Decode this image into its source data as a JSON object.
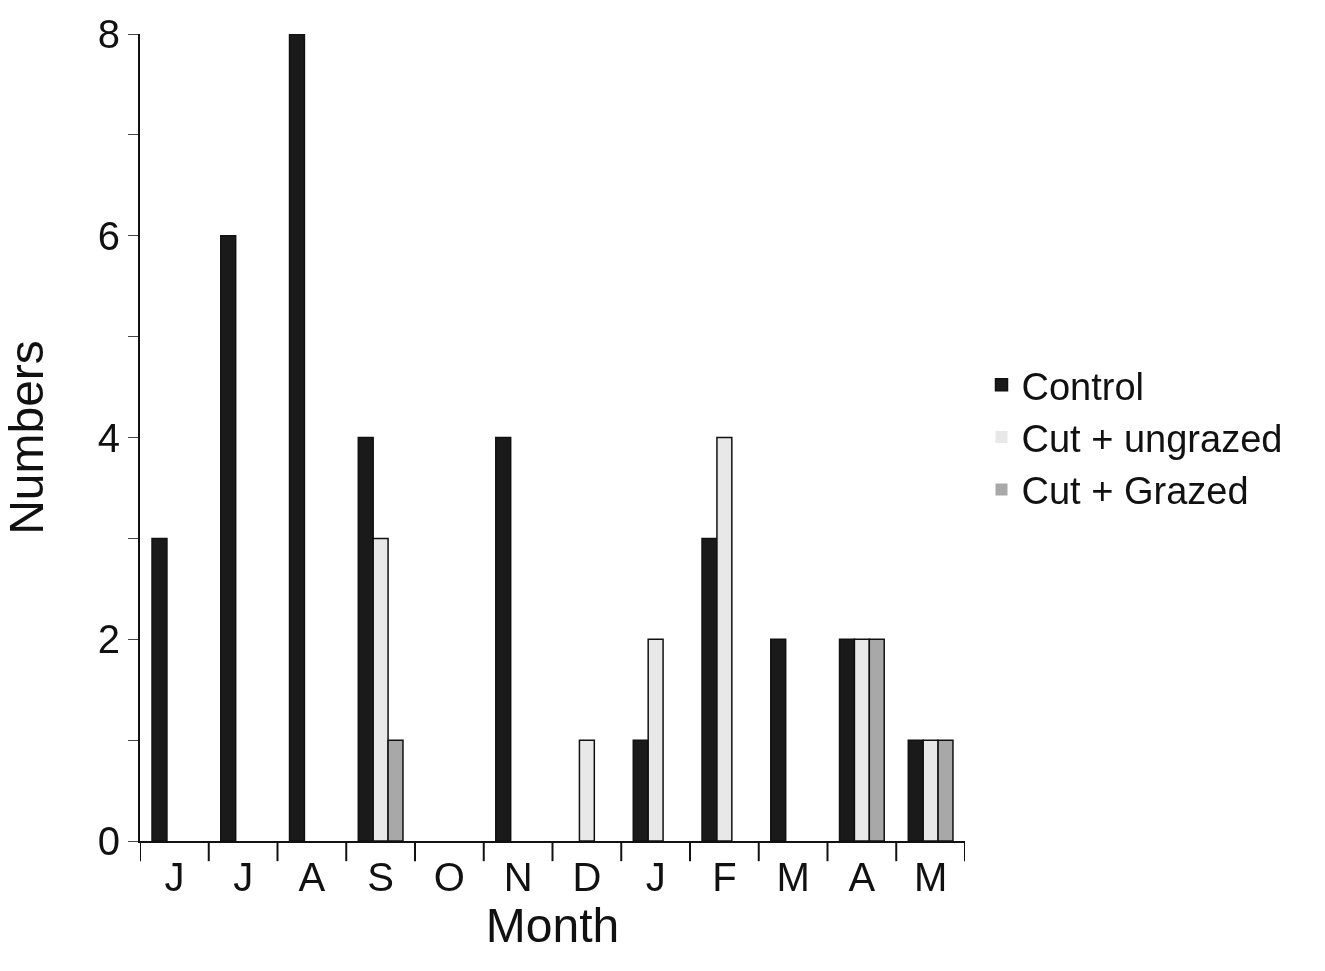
{
  "chart_data": {
    "type": "bar",
    "xlabel": "Month",
    "ylabel": "Numbers",
    "categories": [
      "J",
      "J",
      "A",
      "S",
      "O",
      "N",
      "D",
      "J",
      "F",
      "M",
      "A",
      "M"
    ],
    "series": [
      {
        "name": "Control",
        "color": "#1a1a1a",
        "values": [
          3,
          6,
          8,
          4,
          0,
          4,
          0,
          1,
          3,
          2,
          2,
          1
        ]
      },
      {
        "name": "Cut + ungrazed",
        "color": "#e8e8e8",
        "values": [
          0,
          0,
          0,
          3,
          0,
          0,
          1,
          2,
          4,
          0,
          2,
          1
        ]
      },
      {
        "name": "Cut + Grazed",
        "color": "#a8a8a8",
        "values": [
          0,
          0,
          0,
          1,
          0,
          0,
          0,
          0,
          0,
          0,
          2,
          1
        ]
      }
    ],
    "ylim": [
      0,
      8
    ],
    "yticks": [
      0,
      {
        "value": 1,
        "label": null
      },
      2,
      {
        "value": 3,
        "label": null
      },
      4,
      {
        "value": 5,
        "label": null
      },
      6,
      {
        "value": 7,
        "label": null
      },
      8
    ],
    "grid": false,
    "legend": "right"
  }
}
